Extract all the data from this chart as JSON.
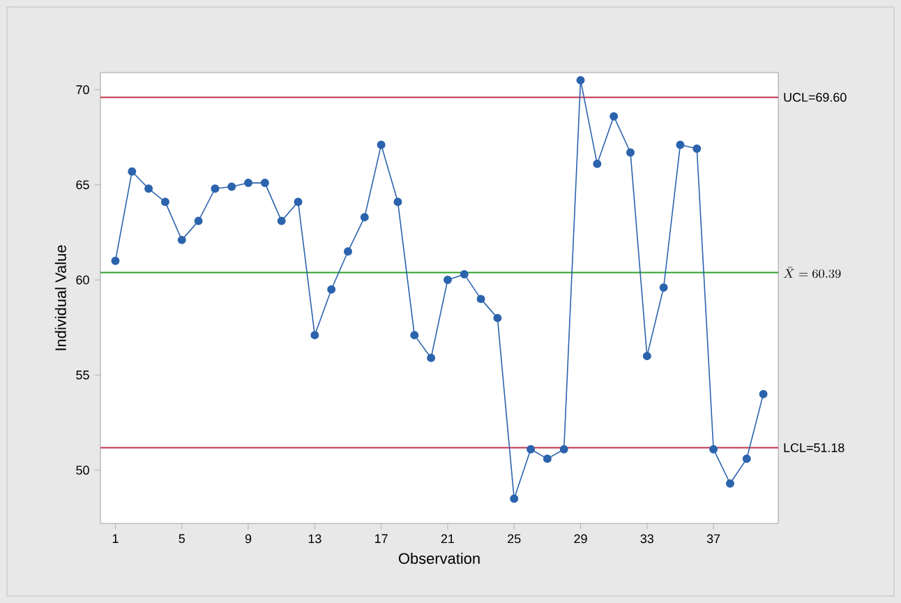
{
  "chart_data": {
    "type": "line",
    "xlabel": "Observation",
    "ylabel": "Individual Value",
    "x": [
      1,
      2,
      3,
      4,
      5,
      6,
      7,
      8,
      9,
      10,
      11,
      12,
      13,
      14,
      15,
      16,
      17,
      18,
      19,
      20,
      21,
      22,
      23,
      24,
      25,
      26,
      27,
      28,
      29,
      30,
      31,
      32,
      33,
      34,
      35,
      36,
      37,
      38,
      39,
      40
    ],
    "series": [
      {
        "color": "#2b63ad",
        "values": [
          61.0,
          65.7,
          64.8,
          64.1,
          62.1,
          63.1,
          64.8,
          64.9,
          65.1,
          65.1,
          63.1,
          64.1,
          57.1,
          59.5,
          61.5,
          63.3,
          67.1,
          64.1,
          57.1,
          55.9,
          60.0,
          60.3,
          59.0,
          58.0,
          48.5,
          51.1,
          50.6,
          51.1,
          70.5,
          66.1,
          68.6,
          66.7,
          56.0,
          59.6,
          67.1,
          66.9,
          51.1,
          49.3,
          50.6,
          54.0
        ]
      }
    ],
    "marker": "circle",
    "line_style": "solid",
    "xlim": [
      0.1,
      40.9
    ],
    "ylim": [
      47.2,
      70.9
    ],
    "xticks": [
      1,
      5,
      9,
      13,
      17,
      21,
      25,
      29,
      33,
      37
    ],
    "yticks": [
      50,
      55,
      60,
      65,
      70
    ],
    "ref_lines": [
      {
        "axis": "y",
        "value": 69.6,
        "label": "UCL=69.60",
        "color": "#c4314b"
      },
      {
        "axis": "y",
        "value": 60.39,
        "label": "\\bar{X}=60.39",
        "color": "#2ca02c"
      },
      {
        "axis": "y",
        "value": 51.18,
        "label": "LCL=51.18",
        "color": "#c4314b"
      }
    ]
  }
}
